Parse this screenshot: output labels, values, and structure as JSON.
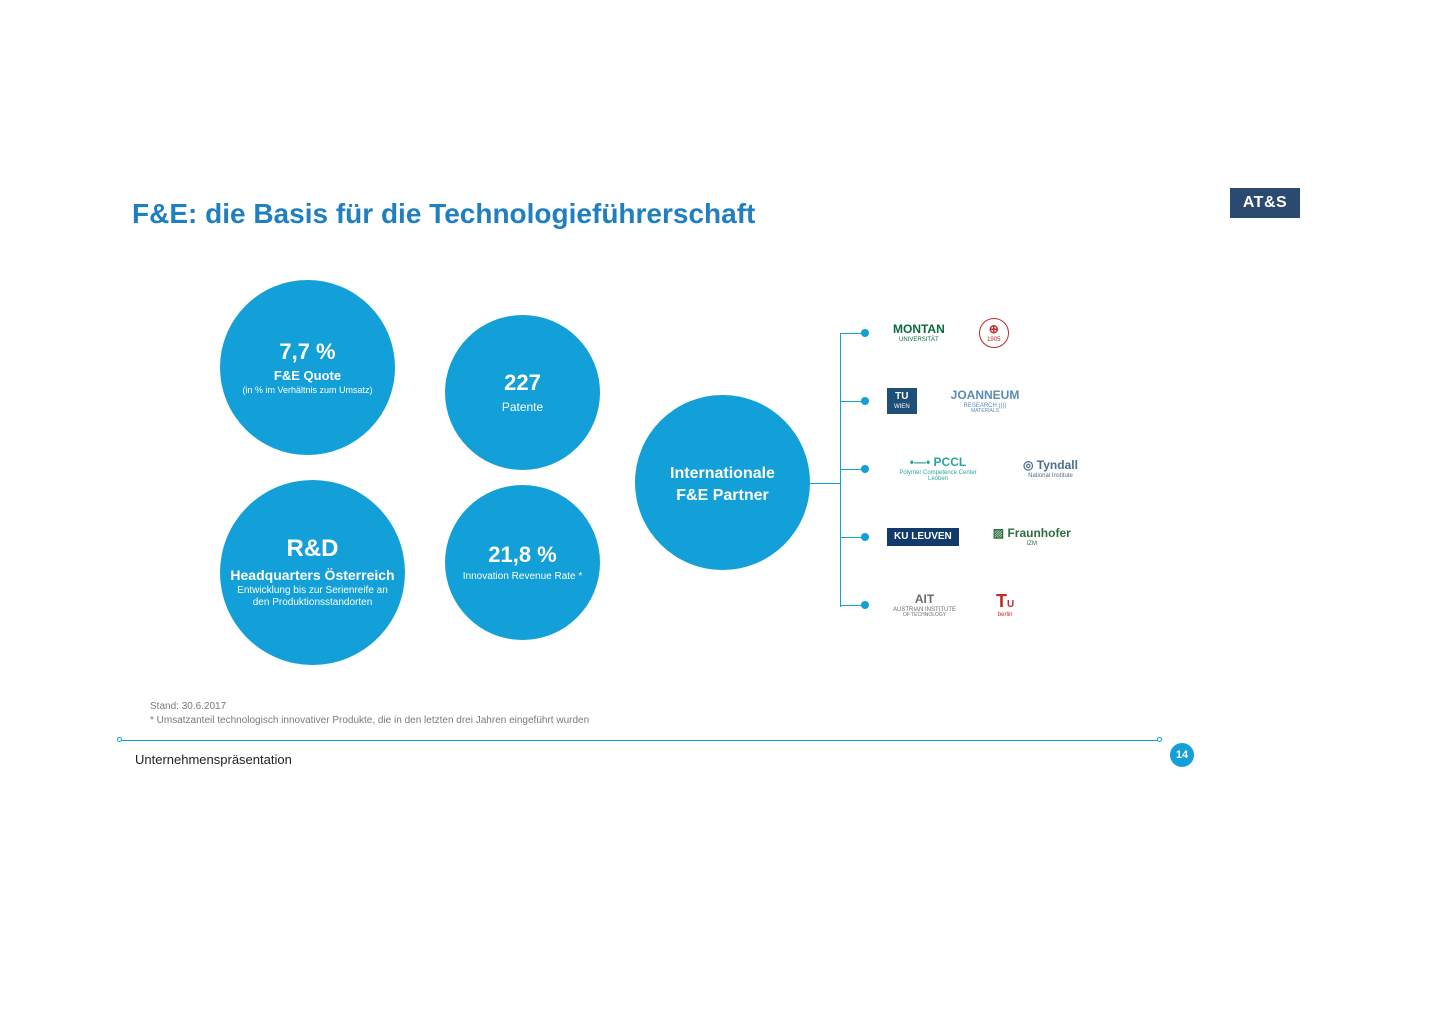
{
  "title": "F&E: die Basis für die Technologieführerschaft",
  "logo": "AT&S",
  "accent_color": "#139fd7",
  "title_color": "#1f7fc1",
  "logo_bg": "#2b4a6f",
  "circles": {
    "fe_quote": {
      "value": "7,7 %",
      "label": "F&E Quote",
      "sub": "(in % im Verhältnis zum Umsatz)"
    },
    "rd_hq": {
      "value": "R&D",
      "label": "Headquarters Österreich",
      "sub": "Entwicklung bis zur Serienreife an den Produktionsstandorten"
    },
    "patents": {
      "value": "227",
      "label": "Patente"
    },
    "innovation_rate": {
      "value": "21,8 %",
      "label": "Innovation Revenue Rate *"
    },
    "partners": {
      "line1": "Internationale",
      "line2": "F&E Partner"
    }
  },
  "partner_rows": [
    {
      "left": {
        "text": "MONTAN",
        "sub": "UNIVERSITÄT",
        "color": "#0b6b3a",
        "boxed": false
      },
      "right": {
        "text": "⊕",
        "sub": "1905",
        "color": "#c62828",
        "boxed": false,
        "round": true
      }
    },
    {
      "left": {
        "text": "TU",
        "sub": "WIEN",
        "color": "#ffffff",
        "bg": "#1f4e79",
        "boxed": true
      },
      "right": {
        "text": "JOANNEUM",
        "sub": "RESEARCH ))))",
        "sub2": "MATERIALS",
        "color": "#5b8bb5",
        "boxed": false
      }
    },
    {
      "left": {
        "text": "•—•",
        "sub": "Polymer Competence Center Leoben",
        "label": "PCCL",
        "color": "#2aa6a0",
        "boxed": false
      },
      "right": {
        "text": "◎ Tyndall",
        "sub": "National Institute",
        "color": "#4a6f8f",
        "boxed": false
      }
    },
    {
      "left": {
        "text": "KU LEUVEN",
        "color": "#ffffff",
        "bg": "#123a6b",
        "boxed": true
      },
      "right": {
        "text": "▨ Fraunhofer",
        "sub": "IZM",
        "color": "#2e6e3e",
        "boxed": false
      }
    },
    {
      "left": {
        "text": "AIT",
        "sub": "AUSTRIAN INSTITUTE",
        "sub2": "OF TECHNOLOGY",
        "color": "#6b6b6b",
        "boxed": false
      },
      "right": {
        "text": "TU",
        "sub": "berlin",
        "color": "#c62828",
        "bg": "#ffffff",
        "boxed": false,
        "tub": true
      }
    }
  ],
  "footnotes": {
    "line1": "Stand: 30.6.2017",
    "line2": "* Umsatzanteil technologisch innovativer Produkte, die in den letzten drei Jahren eingeführt wurden"
  },
  "footer_label": "Unternehmenspräsentation",
  "page_number": "14"
}
